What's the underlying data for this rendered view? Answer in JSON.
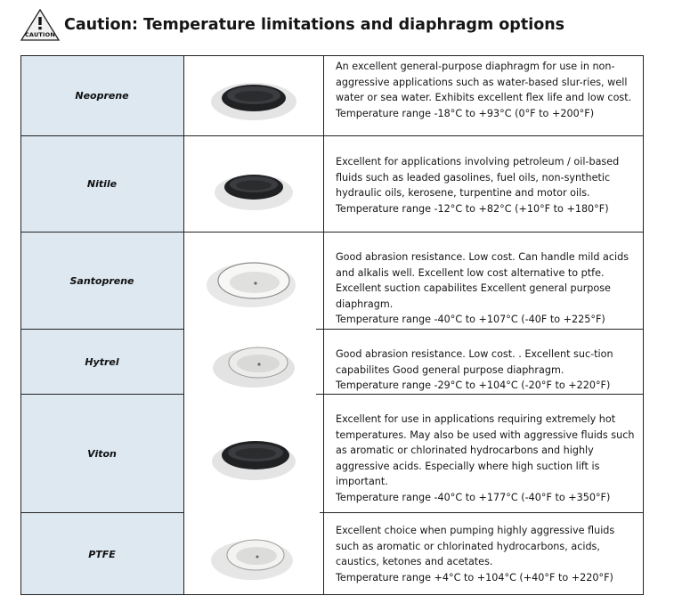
{
  "header": {
    "icon": "caution-warning-icon",
    "icon_text": "CAUTION",
    "title": "Caution: Temperature limitations and diaphragm options"
  },
  "colors": {
    "name_cell_bg": "#dde8f1",
    "dark_diaphragm": "#2a2c2e",
    "white_diaphragm": "#ececea"
  },
  "rows": [
    {
      "name": "Neoprene",
      "image": "black-diaphragm",
      "description": [
        "An excellent general-purpose diaphragm for use in non-aggressive applications such as water-based slur-ries, well water or sea water. Exhibits excellent flex life and low cost. Temperature range -18°C to +93°C (0°F to +200°F)"
      ]
    },
    {
      "name": "Nitile",
      "image": "black-diaphragm",
      "description": [
        "Excellent for applications involving petroleum / oil-based fluids such as leaded gasolines, fuel oils, non-synthetic hydraulic oils, kerosene, turpentine and motor oils.",
        "Temperature range -12°C to +82°C (+10°F to +180°F)"
      ]
    },
    {
      "name": "Santoprene",
      "image": "white-diaphragm",
      "description": [
        "Good abrasion resistance. Low cost. Can handle mild acids and alkalis well. Excellent low cost alternative to ptfe. Excellent suction capabilites Excellent general purpose diaphragm.",
        "Temperature range -40°C to +107°C (-40F to +225°F)"
      ]
    },
    {
      "name": "Hytrel",
      "image": "white-diaphragm",
      "description": [
        "Good abrasion resistance. Low cost. . Excellent suc-tion capabilites Good general purpose diaphragm.",
        "Temperature range -29°C to +104°C (-20°F to +220°F)"
      ]
    },
    {
      "name": "Viton",
      "image": "black-diaphragm",
      "description": [
        "Excellent for use in applications requiring extremely hot temperatures. May also be used with aggressive fluids such as aromatic or chlorinated hydrocarbons and highly aggressive acids. Especially where high suction lift is important.",
        "Temperature range -40°C to +177°C (-40°F to +350°F)"
      ]
    },
    {
      "name": "PTFE",
      "image": "white-diaphragm",
      "description": [
        "Excellent choice when pumping highly aggressive fluids such as aromatic or chlorinated hydrocarbons, acids, caustics, ketones and acetates.",
        "Temperature range +4°C to +104°C (+40°F to +220°F)"
      ]
    }
  ]
}
